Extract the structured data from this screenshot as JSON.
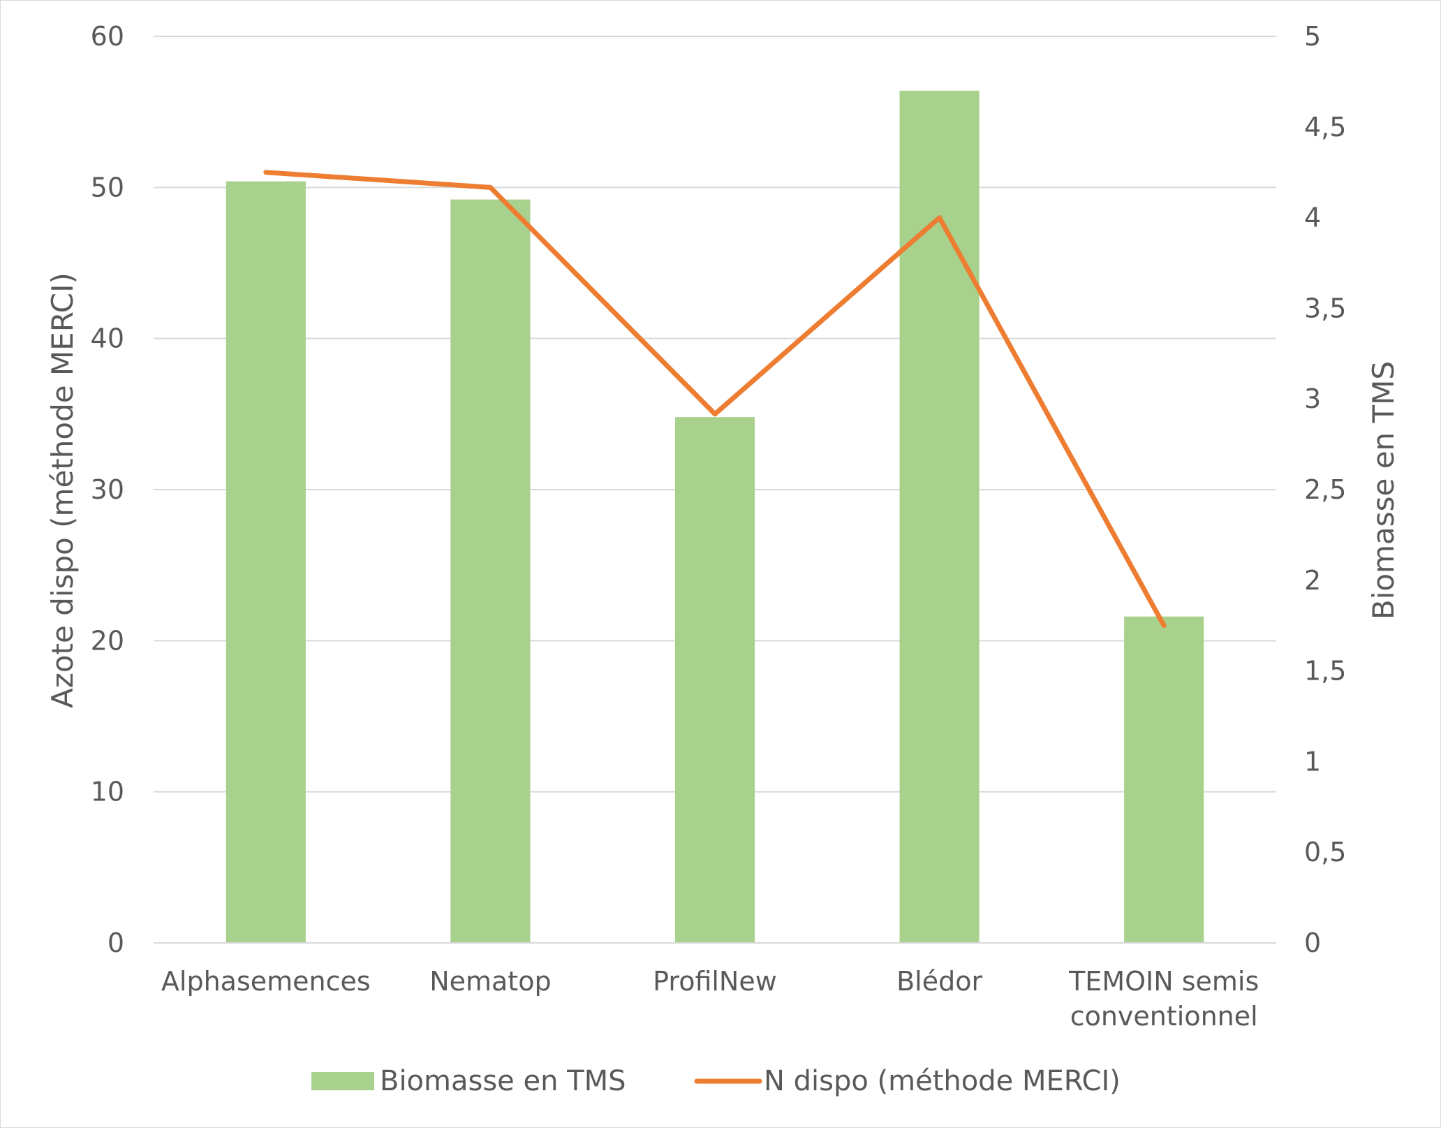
{
  "chart_data": {
    "type": "bar",
    "categories": [
      [
        "Alphasemences"
      ],
      [
        "Nematop"
      ],
      [
        "ProfilNew"
      ],
      [
        "Blédor"
      ],
      [
        "TEMOIN semis",
        "conventionnel"
      ]
    ],
    "series": [
      {
        "name": "Biomasse en TMS",
        "type": "bar",
        "axis": "right",
        "color": "#a9d18e",
        "values": [
          4.2,
          4.1,
          2.9,
          4.7,
          1.8
        ]
      },
      {
        "name": "N dispo (méthode MERCI)",
        "type": "line",
        "axis": "left",
        "color": "#ed7d31",
        "values": [
          51,
          50,
          35,
          48,
          21
        ]
      }
    ],
    "ylabel_left": "Azote dispo (méthode MERCI)",
    "ylabel_right": "Biomasse en TMS",
    "ylim_left": [
      0,
      60
    ],
    "ylim_right": [
      0,
      5
    ],
    "yticks_left": [
      "0",
      "10",
      "20",
      "30",
      "40",
      "50",
      "60"
    ],
    "yticks_right": [
      "0",
      "0,5",
      "1",
      "1,5",
      "2",
      "2,5",
      "3",
      "3,5",
      "4",
      "4,5",
      "5"
    ],
    "grid": true,
    "legend_position": "bottom"
  }
}
